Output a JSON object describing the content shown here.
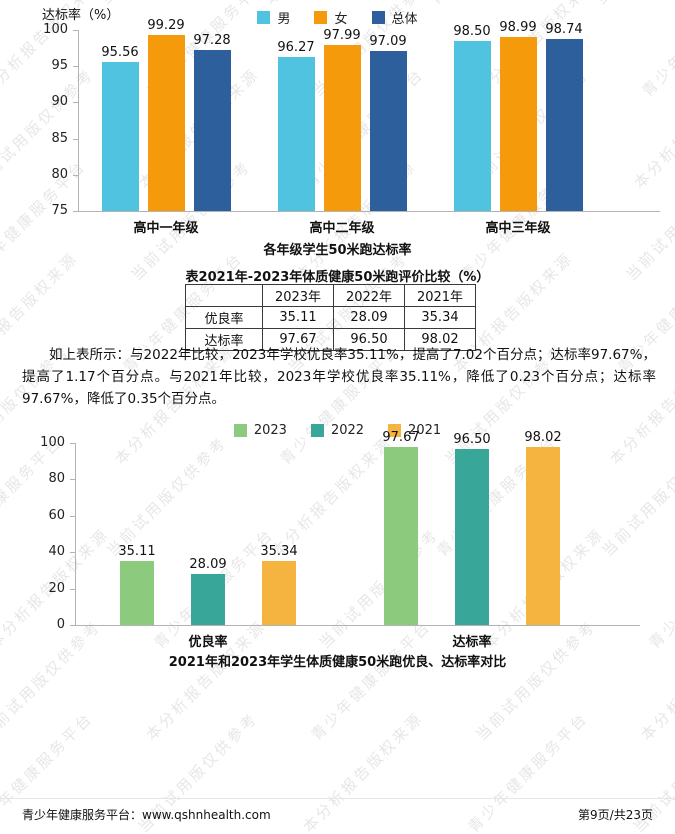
{
  "page": {
    "footer_left": "青少年健康服务平台：www.qshnhealth.com",
    "footer_right": "第9页/共23页"
  },
  "watermark": {
    "phrases": [
      "青少年健康服务平台",
      "当前试用版仅供参考",
      "本分析报告版权来源"
    ]
  },
  "chart_data": [
    {
      "type": "bar",
      "title": "各年级学生50米跑达标率",
      "ylabel": "达标率（%）",
      "xlabel": "",
      "categories": [
        "高中一年级",
        "高中二年级",
        "高中三年级"
      ],
      "series": [
        {
          "name": "男",
          "color": "#4fc3e0",
          "values": [
            95.56,
            96.27,
            98.5
          ],
          "labels": [
            "95.56",
            "96.27",
            "98.50"
          ]
        },
        {
          "name": "女",
          "color": "#f59b0b",
          "values": [
            99.29,
            97.99,
            98.99
          ],
          "labels": [
            "99.29",
            "97.99",
            "98.99"
          ]
        },
        {
          "name": "总体",
          "color": "#2c5f9c",
          "values": [
            97.28,
            97.09,
            98.74
          ],
          "labels": [
            "97.28",
            "97.09",
            "98.74"
          ]
        }
      ],
      "ylim": [
        75,
        100
      ],
      "yticks": [
        75,
        80,
        85,
        90,
        95,
        100
      ],
      "legend_position": "top",
      "grid": false
    },
    {
      "type": "bar",
      "title": "2021年和2023年学生体质健康50米跑优良、达标率对比",
      "ylabel": "",
      "xlabel": "",
      "categories": [
        "优良率",
        "达标率"
      ],
      "series": [
        {
          "name": "2023",
          "color": "#8ccb7d",
          "values": [
            35.11,
            97.67
          ],
          "labels": [
            "35.11",
            "97.67"
          ]
        },
        {
          "name": "2022",
          "color": "#38a79a",
          "values": [
            28.09,
            96.5
          ],
          "labels": [
            "28.09",
            "96.50"
          ]
        },
        {
          "name": "2021",
          "color": "#f5b43f",
          "values": [
            35.34,
            98.02
          ],
          "labels": [
            "35.34",
            "98.02"
          ]
        }
      ],
      "ylim": [
        0,
        100
      ],
      "yticks": [
        0,
        20,
        40,
        60,
        80,
        100
      ],
      "legend_position": "top",
      "grid": false
    }
  ],
  "table": {
    "title": "表2021年-2023年体质健康50米跑评价比较（%）",
    "columns": [
      "",
      "2023年",
      "2022年",
      "2021年"
    ],
    "rows": [
      {
        "label": "优良率",
        "values": [
          "35.11",
          "28.09",
          "35.34"
        ]
      },
      {
        "label": "达标率",
        "values": [
          "97.67",
          "96.50",
          "98.02"
        ]
      }
    ]
  },
  "paragraph": "如上表所示：与2022年比较，2023年学校优良率35.11%，提高了7.02个百分点；达标率97.67%，提高了1.17个百分点。与2021年比较，2023年学校优良率35.11%，降低了0.23个百分点；达标率97.67%，降低了0.35个百分点。"
}
